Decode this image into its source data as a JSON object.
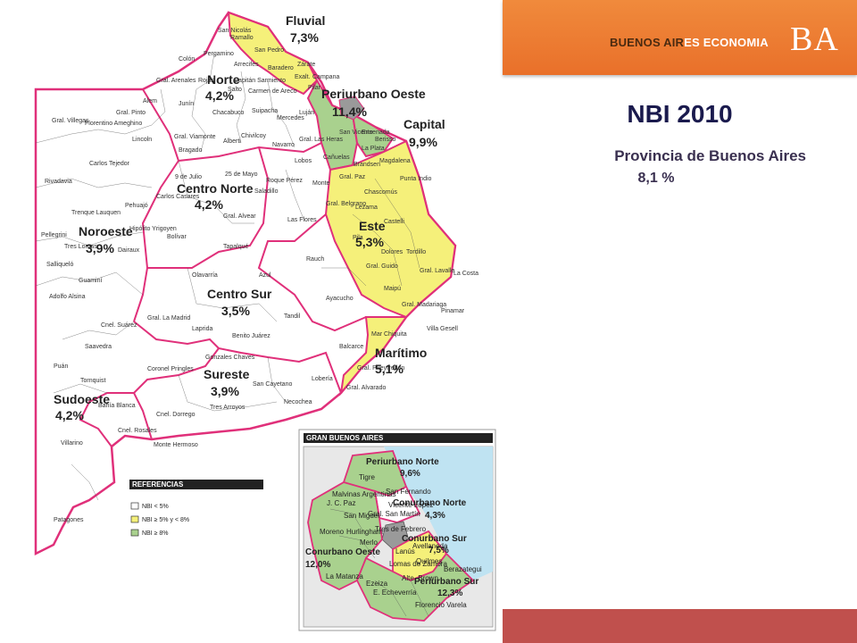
{
  "header": {
    "brand_part1": "BUENOS AIR",
    "brand_part2": "ES ECONOMIA",
    "logo": "BA",
    "color_bar": "#e9702a",
    "color_footer": "#c0504d"
  },
  "title": "NBI 2010",
  "subtitle": "Provincia de Buenos Aires",
  "province_value": "8,1 %",
  "map": {
    "colors": {
      "white": "#ffffff",
      "yellow": "#f5f07a",
      "green": "#a9d18e",
      "border": "#e0307a",
      "water": "#bfe3f2",
      "caba": "#9a9a9a"
    },
    "regions": [
      {
        "name": "Fluvial",
        "value": "7,3%"
      },
      {
        "name": "Norte",
        "value": "4,2%"
      },
      {
        "name": "Periurbano Oeste",
        "value": "11,4%"
      },
      {
        "name": "Capital",
        "value": "9,9%"
      },
      {
        "name": "Centro Norte",
        "value": "4,2%"
      },
      {
        "name": "Noroeste",
        "value": "3,9%"
      },
      {
        "name": "Este",
        "value": "5,3%"
      },
      {
        "name": "Centro Sur",
        "value": "3,5%"
      },
      {
        "name": "Marítimo",
        "value": "5,1%"
      },
      {
        "name": "Sureste",
        "value": "3,9%"
      },
      {
        "name": "Sudoeste",
        "value": "4,2%"
      }
    ],
    "municipios": [
      "San Nicolás",
      "Ramallo",
      "San Pedro",
      "Baradero",
      "Zárate",
      "Campana",
      "Exalt.",
      "Pilar",
      "Luján",
      "Colón",
      "Pergamino",
      "Arrecifes",
      "Capitán Sarmiento",
      "Salto",
      "Carmen de Areco",
      "Gral. Arenales",
      "Rojas",
      "Alem",
      "Junín",
      "Chacabuco",
      "Suipacha",
      "Mercedes",
      "Gral. Las Heras",
      "Gral. Villegas",
      "Florentino Ameghino",
      "Lincoln",
      "Gral. Pinto",
      "Gral. Viamonte",
      "Bragado",
      "Alberti",
      "Chivilcoy",
      "Navarro",
      "Lobos",
      "Cañuelas",
      "Brandsen",
      "Magdalena",
      "Ensenada",
      "Berisso",
      "La Plata",
      "San Vicente",
      "Punta Indio",
      "Rivadavia",
      "Carlos Tejedor",
      "9 de Julio",
      "25 de Mayo",
      "Roque Pérez",
      "Saladillo",
      "Monte",
      "Gral. Paz",
      "Chascomús",
      "Lezama",
      "Carlos Casares",
      "Pehuajó",
      "Trenque Lauquen",
      "Gral. Alvear",
      "Gral. Belgrano",
      "Las Flores",
      "Castelli",
      "Pellegrini",
      "Tres Lomas",
      "Hipólito Yrigoyen",
      "Bolívar",
      "Tapalqué",
      "Rauch",
      "Pila",
      "Dolores",
      "Tordillo",
      "Salliqueló",
      "Dairaux",
      "Guaminí",
      "Olavarría",
      "Azul",
      "Gral. Guido",
      "Gral. Lavalle",
      "La Costa",
      "Maipú",
      "Adolfo Alsina",
      "Cnel. Suárez",
      "Gral. La Madrid",
      "Ayacucho",
      "Gral. Madariaga",
      "Pinamar",
      "Laprida",
      "Benito Juárez",
      "Tandil",
      "Villa Gesell",
      "Mar Chiquita",
      "Saavedra",
      "Balcarce",
      "Gral. Pueyrredón",
      "Puán",
      "Tornquist",
      "Coronel Pringles",
      "Gonzales Chaves",
      "Gral. Alvarado",
      "Lobería",
      "San Cayetano",
      "Necochea",
      "Tres Arroyos",
      "Cnel. Dorrego",
      "Bahía Blanca",
      "Cnel. Rosales",
      "Monte Hermoso",
      "Villarino",
      "Patagones"
    ],
    "legend": {
      "title": "REFERENCIAS",
      "items": [
        {
          "label": "NBI < 5%",
          "color": "#ffffff"
        },
        {
          "label": "NBI ≥ 5% y < 8%",
          "color": "#f5f07a"
        },
        {
          "label": "NBI ≥ 8%",
          "color": "#a9d18e"
        }
      ]
    },
    "inset": {
      "title": "GRAN BUENOS AIRES",
      "regions": [
        {
          "name": "Periurbano Norte",
          "value": "9,6%"
        },
        {
          "name": "Conurbano Norte",
          "value": "4,3%"
        },
        {
          "name": "Conurbano Sur",
          "value": "7,5%"
        },
        {
          "name": "Conurbano Oeste",
          "value": "12,0%"
        },
        {
          "name": "Periurbano Sur",
          "value": "12,3%"
        }
      ],
      "municipios": [
        "Tigre",
        "San Fernando",
        "Malvinas Argentinas",
        "J. C. Paz",
        "San Miguel",
        "Vicente López",
        "Gral. San Martín",
        "Moreno",
        "Hurlingham",
        "Tres de Febrero",
        "Merlo",
        "Avellaneda",
        "Lanús",
        "Quilmes",
        "Berazategui",
        "Lomas de Zamora",
        "La Matanza",
        "Alte. Brown",
        "Ezeiza",
        "E. Echeverría",
        "Florencio Varela"
      ]
    }
  }
}
